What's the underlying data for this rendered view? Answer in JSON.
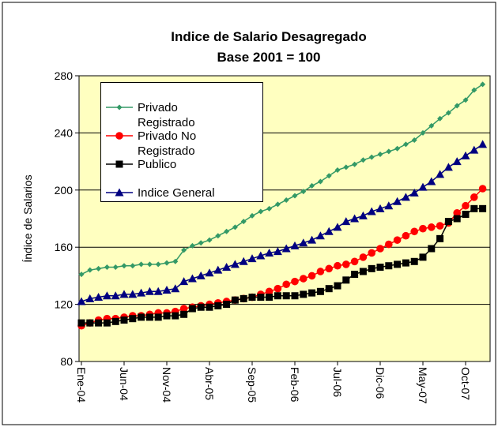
{
  "chart_data": {
    "type": "line",
    "title": "Indice de Salario Desagregado",
    "subtitle": "Base 2001 = 100",
    "y_label": "Índice de Salarios",
    "categories": [
      "Ene-04",
      null,
      null,
      null,
      null,
      "Jun-04",
      null,
      null,
      null,
      null,
      "Nov-04",
      null,
      null,
      null,
      null,
      "Abr-05",
      null,
      null,
      null,
      null,
      "Sep-05",
      null,
      null,
      null,
      null,
      "Feb-06",
      null,
      null,
      null,
      null,
      "Jul-06",
      null,
      null,
      null,
      null,
      "Dic-06",
      null,
      null,
      null,
      null,
      "May-07",
      null,
      null,
      null,
      null,
      "Oct-07",
      null,
      null
    ],
    "series": [
      {
        "name": "Privado",
        "color": "#339966",
        "marker": "diamond",
        "values": [
          141,
          144,
          145,
          146,
          146,
          147,
          147,
          148,
          148,
          148,
          149,
          150,
          158,
          161,
          163,
          165,
          168,
          171,
          174,
          178,
          182,
          185,
          187,
          190,
          193,
          196,
          199,
          203,
          206,
          210,
          214,
          216,
          218,
          221,
          223,
          225,
          227,
          229,
          232,
          235,
          240,
          245,
          250,
          254,
          259,
          263,
          270,
          274
        ]
      },
      {
        "name": "Registrado Privado No",
        "color": "#ff0000",
        "marker": "circle",
        "values": [
          105,
          107,
          109,
          110,
          110,
          111,
          112,
          112,
          113,
          114,
          114,
          115,
          117,
          118,
          119,
          120,
          121,
          122,
          123,
          124,
          125,
          127,
          129,
          131,
          134,
          136,
          138,
          140,
          143,
          145,
          147,
          148,
          150,
          153,
          156,
          159,
          162,
          165,
          168,
          171,
          173,
          174,
          175,
          177,
          184,
          189,
          195,
          201
        ]
      },
      {
        "name": "Registrado Publico",
        "color": "#000000",
        "marker": "square",
        "values": [
          107,
          107,
          107,
          107,
          108,
          109,
          110,
          111,
          111,
          111,
          112,
          112,
          113,
          117,
          118,
          118,
          119,
          120,
          123,
          124,
          125,
          125,
          125,
          126,
          126,
          126,
          127,
          128,
          129,
          131,
          133,
          137,
          141,
          143,
          145,
          146,
          147,
          148,
          149,
          150,
          153,
          159,
          166,
          178,
          180,
          183,
          187,
          187
        ]
      },
      {
        "name": "Indice General",
        "color": "#000080",
        "marker": "triangle",
        "values": [
          122,
          124,
          125,
          126,
          126,
          127,
          127,
          128,
          129,
          129,
          130,
          131,
          136,
          138,
          140,
          142,
          144,
          146,
          148,
          150,
          152,
          154,
          156,
          157,
          159,
          161,
          163,
          165,
          168,
          171,
          174,
          178,
          180,
          182,
          185,
          187,
          189,
          192,
          195,
          198,
          202,
          206,
          211,
          216,
          220,
          224,
          228,
          232
        ]
      }
    ],
    "ylim": [
      80,
      280
    ],
    "yticks": [
      80,
      120,
      160,
      200,
      240,
      280
    ],
    "grid": true,
    "legend": "upper left"
  }
}
